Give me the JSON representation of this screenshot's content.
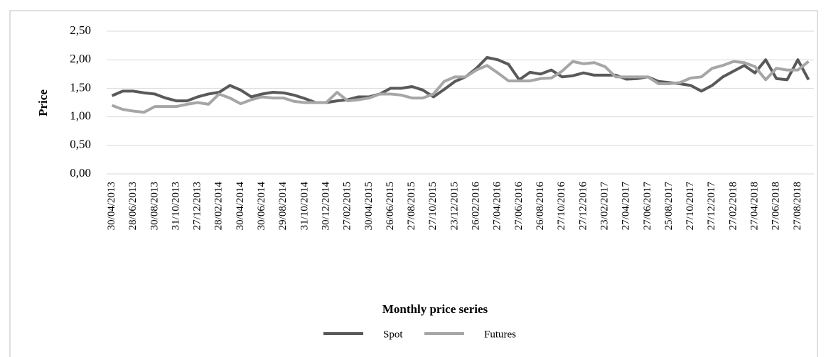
{
  "chart_data": {
    "type": "line",
    "x_label": "Monthly  price series",
    "y_label": "Price",
    "categories": [
      "30/04/2013",
      null,
      "28/06/2013",
      null,
      "30/08/2013",
      null,
      "31/10/2013",
      null,
      "27/12/2013",
      null,
      "28/02/2014",
      null,
      "30/04/2014",
      null,
      "30/06/2014",
      null,
      "29/08/2014",
      null,
      "31/10/2014",
      null,
      "30/12/2014",
      null,
      "27/02/2015",
      null,
      "30/04/2015",
      null,
      "26/06/2015",
      null,
      "27/08/2015",
      null,
      "27/10/2015",
      null,
      "23/12/2015",
      null,
      "26/02/2016",
      null,
      "27/04/2016",
      null,
      "27/06/2016",
      null,
      "26/08/2016",
      null,
      "27/10/2016",
      null,
      "27/12/2016",
      null,
      "23/02/2017",
      null,
      "27/04/2017",
      null,
      "27/06/2017",
      null,
      "25/08/2017",
      null,
      "27/10/2017",
      null,
      "27/12/2017",
      null,
      "27/02/2018",
      null,
      "27/04/2018",
      null,
      "27/06/2018",
      null,
      "27/08/2018",
      null
    ],
    "series": [
      {
        "name": "Spot",
        "color": "#595959",
        "values": [
          1.37,
          1.45,
          1.45,
          1.42,
          1.4,
          1.33,
          1.28,
          1.28,
          1.35,
          1.4,
          1.43,
          1.55,
          1.47,
          1.35,
          1.4,
          1.43,
          1.42,
          1.38,
          1.32,
          1.25,
          1.25,
          1.28,
          1.3,
          1.35,
          1.35,
          1.4,
          1.5,
          1.5,
          1.53,
          1.47,
          1.35,
          1.48,
          1.62,
          1.7,
          1.85,
          2.04,
          2.0,
          1.92,
          1.65,
          1.78,
          1.75,
          1.82,
          1.7,
          1.72,
          1.77,
          1.73,
          1.73,
          1.73,
          1.66,
          1.67,
          1.7,
          1.62,
          1.6,
          1.58,
          1.55,
          1.45,
          1.55,
          1.7,
          1.8,
          1.9,
          1.77,
          2.0,
          1.67,
          1.65,
          2.0,
          1.65
        ]
      },
      {
        "name": "Futures",
        "color": "#a6a6a6",
        "values": [
          1.2,
          1.13,
          1.1,
          1.08,
          1.18,
          1.18,
          1.18,
          1.22,
          1.25,
          1.22,
          1.4,
          1.33,
          1.23,
          1.3,
          1.35,
          1.33,
          1.33,
          1.27,
          1.25,
          1.25,
          1.25,
          1.43,
          1.28,
          1.3,
          1.33,
          1.4,
          1.4,
          1.38,
          1.33,
          1.33,
          1.4,
          1.62,
          1.7,
          1.7,
          1.82,
          1.9,
          1.77,
          1.63,
          1.63,
          1.63,
          1.67,
          1.68,
          1.8,
          1.97,
          1.93,
          1.95,
          1.88,
          1.7,
          1.7,
          1.7,
          1.7,
          1.58,
          1.58,
          1.6,
          1.68,
          1.7,
          1.85,
          1.9,
          1.97,
          1.95,
          1.88,
          1.65,
          1.85,
          1.82,
          1.82,
          1.97
        ]
      }
    ],
    "ylim": [
      0,
      2.5
    ],
    "yticks": [
      {
        "value": 0,
        "label": "0,00"
      },
      {
        "value": 0.5,
        "label": "0,50"
      },
      {
        "value": 1,
        "label": "1,00"
      },
      {
        "value": 1.5,
        "label": "1,50"
      },
      {
        "value": 2,
        "label": "2,00"
      },
      {
        "value": 2.5,
        "label": "2,50"
      }
    ],
    "grid": true
  }
}
